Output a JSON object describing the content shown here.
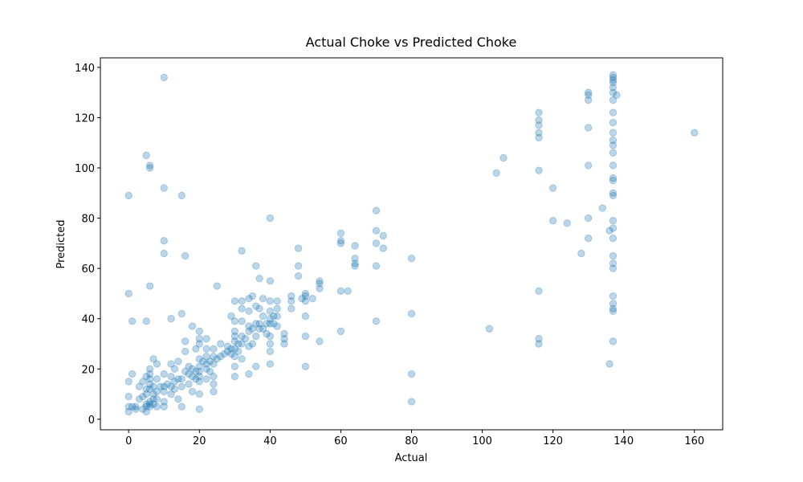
{
  "chart_data": {
    "type": "scatter",
    "title": "Actual Choke vs Predicted Choke",
    "x_label": "Actual",
    "y_label": "Predicted",
    "color": "#1f77b4",
    "xlim": [
      -8,
      168
    ],
    "ylim": [
      -4.2,
      143.8
    ],
    "xticks": [
      0,
      20,
      40,
      60,
      80,
      100,
      120,
      140,
      160
    ],
    "yticks": [
      0,
      20,
      40,
      60,
      80,
      100,
      120,
      140
    ],
    "x": [
      0,
      0,
      0,
      0,
      1,
      1,
      2,
      2,
      3,
      3,
      4,
      4,
      4,
      5,
      5,
      5,
      5,
      5,
      5,
      6,
      6,
      6,
      6,
      6,
      6,
      6,
      6,
      7,
      7,
      7,
      7,
      7,
      8,
      8,
      8,
      8,
      8,
      9,
      10,
      10,
      10,
      10,
      10,
      11,
      12,
      12,
      12,
      12,
      13,
      13,
      13,
      14,
      14,
      14,
      15,
      15,
      15,
      16,
      16,
      16,
      17,
      17,
      17,
      18,
      18,
      18,
      18,
      19,
      19,
      19,
      20,
      20,
      20,
      20,
      20,
      20,
      20,
      20,
      20,
      20,
      21,
      22,
      22,
      22,
      22,
      22,
      22,
      23,
      23,
      24,
      24,
      24,
      24,
      24,
      24,
      25,
      25,
      26,
      26,
      27,
      28,
      28,
      29,
      29,
      29,
      30,
      30,
      30,
      30,
      30,
      30,
      30,
      30,
      30,
      31,
      31,
      32,
      32,
      32,
      32,
      32,
      32,
      32,
      33,
      34,
      34,
      34,
      34,
      34,
      34,
      35,
      35,
      35,
      36,
      36,
      36,
      36,
      36,
      37,
      37,
      37,
      37,
      38,
      38,
      38,
      39,
      39,
      40,
      40,
      40,
      40,
      40,
      40,
      40,
      40,
      40,
      40,
      41,
      41,
      42,
      42,
      42,
      42,
      44,
      44,
      44,
      46,
      46,
      46,
      48,
      48,
      48,
      49,
      50,
      50,
      50,
      50,
      50,
      50,
      52,
      54,
      54,
      54,
      54,
      60,
      60,
      60,
      60,
      60,
      62,
      64,
      64,
      64,
      64,
      70,
      70,
      70,
      70,
      70,
      72,
      72,
      80,
      80,
      80,
      80,
      0,
      0,
      1,
      5,
      5,
      6,
      6,
      6,
      10,
      10,
      10,
      10,
      12,
      15,
      15,
      16,
      102,
      104,
      106,
      116,
      116,
      116,
      116,
      116,
      116,
      116,
      116,
      116,
      120,
      120,
      124,
      128,
      130,
      130,
      130,
      130,
      130,
      130,
      130,
      134,
      136,
      136,
      137,
      137,
      137,
      137,
      137,
      137,
      137,
      137,
      137,
      137,
      137,
      137,
      137,
      137,
      137,
      137,
      137,
      137,
      137,
      137,
      137,
      137,
      137,
      137,
      137,
      137,
      137,
      137,
      137,
      138,
      160
    ],
    "values": [
      3,
      5,
      9,
      15,
      18,
      5,
      4,
      5,
      13,
      8,
      4,
      9,
      15,
      3,
      5,
      6,
      10,
      12,
      17,
      5,
      6,
      7,
      12,
      14,
      16,
      18,
      20,
      6,
      8,
      10,
      13,
      24,
      5,
      8,
      11,
      16,
      22,
      13,
      5,
      7,
      11,
      13,
      18,
      14,
      10,
      13,
      17,
      22,
      12,
      15,
      20,
      8,
      16,
      23,
      5,
      13,
      16,
      19,
      27,
      31,
      14,
      18,
      21,
      11,
      17,
      20,
      37,
      16,
      19,
      28,
      4,
      10,
      15,
      17,
      19,
      21,
      24,
      30,
      32,
      35,
      23,
      16,
      20,
      22,
      25,
      28,
      32,
      19,
      23,
      11,
      14,
      17,
      22,
      25,
      28,
      24,
      53,
      25,
      30,
      26,
      27,
      29,
      26,
      28,
      41,
      17,
      21,
      25,
      28,
      31,
      33,
      35,
      39,
      47,
      27,
      30,
      24,
      30,
      33,
      39,
      44,
      47,
      67,
      32,
      18,
      29,
      35,
      37,
      43,
      48,
      30,
      36,
      49,
      21,
      33,
      38,
      45,
      61,
      36,
      38,
      44,
      56,
      36,
      41,
      48,
      34,
      38,
      22,
      27,
      30,
      33,
      38,
      40,
      43,
      47,
      55,
      80,
      38,
      41,
      37,
      41,
      44,
      47,
      30,
      32,
      34,
      44,
      47,
      49,
      57,
      61,
      68,
      48,
      21,
      33,
      41,
      47,
      49,
      50,
      48,
      31,
      52,
      54,
      55,
      35,
      51,
      70,
      71,
      74,
      51,
      61,
      62,
      64,
      69,
      39,
      61,
      70,
      75,
      83,
      68,
      73,
      7,
      18,
      42,
      64,
      50,
      89,
      39,
      39,
      105,
      53,
      100,
      101,
      136,
      92,
      71,
      66,
      40,
      42,
      89,
      65,
      36,
      98,
      104,
      30,
      32,
      51,
      99,
      112,
      114,
      117,
      119,
      122,
      79,
      92,
      78,
      66,
      72,
      80,
      101,
      116,
      127,
      129,
      130,
      84,
      22,
      75,
      31,
      43,
      44,
      46,
      49,
      60,
      62,
      65,
      72,
      76,
      79,
      89,
      90,
      95,
      96,
      101,
      106,
      109,
      111,
      114,
      118,
      122,
      127,
      130,
      132,
      134,
      135,
      136,
      137,
      129,
      114
    ]
  }
}
